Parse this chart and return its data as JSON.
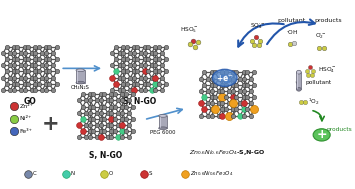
{
  "background_color": "#ffffff",
  "fig_width": 3.55,
  "fig_height": 1.89,
  "dpi": 100,
  "ion_labels": [
    "Zn²⁺",
    "Ni²⁺",
    "Fe³⁺"
  ],
  "ion_colors": [
    "#cc3333",
    "#88cc44",
    "#4466bb"
  ],
  "reagent1_label": "CH₄N₂S",
  "reagent2_label": "PEG 6000",
  "flow_labels": [
    "pollutant",
    "products",
    "pollutant",
    "products"
  ],
  "center_label": "+e⁻",
  "arrow_color": "#5090cc",
  "C_color": "#888888",
  "N_color": "#44cc88",
  "O_color": "#cc3333",
  "S_color": "#cccc44",
  "metal_color": "#f0a020",
  "bond_color": "#555555",
  "legend_C_color": "#7788aa",
  "legend_N_color": "#44ccaa",
  "legend_O_color": "#cccc44",
  "legend_S_color": "#cc3333",
  "legend_metal_color": "#f0a020"
}
